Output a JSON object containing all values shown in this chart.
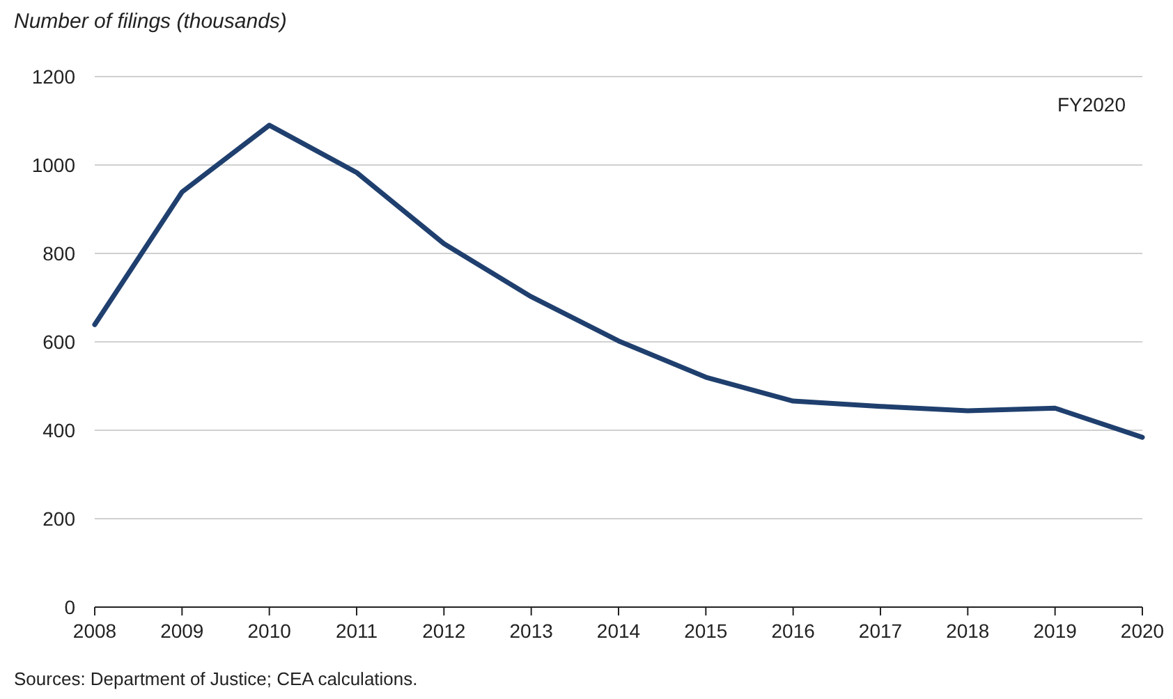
{
  "chart_data": {
    "type": "line",
    "ylabel": "Number of filings (thousands)",
    "x": [
      2008,
      2009,
      2010,
      2011,
      2012,
      2013,
      2014,
      2015,
      2016,
      2017,
      2018,
      2019,
      2020
    ],
    "series": [
      {
        "color": "#1f3f6e",
        "values": [
          639,
          939,
          1090,
          983,
          822,
          702,
          602,
          520,
          466,
          454,
          444,
          450,
          384
        ]
      }
    ],
    "xlim": [
      2008,
      2020
    ],
    "xticks": [
      2008,
      2009,
      2010,
      2011,
      2012,
      2013,
      2014,
      2015,
      2016,
      2017,
      2018,
      2019,
      2020
    ],
    "ylim": [
      0,
      1200
    ],
    "yticks": [
      0,
      200,
      400,
      600,
      800,
      1000,
      1200
    ],
    "grid": "y",
    "annotations": [
      "FY2020",
      "Sources: Department of Justice; CEA calculations."
    ]
  }
}
